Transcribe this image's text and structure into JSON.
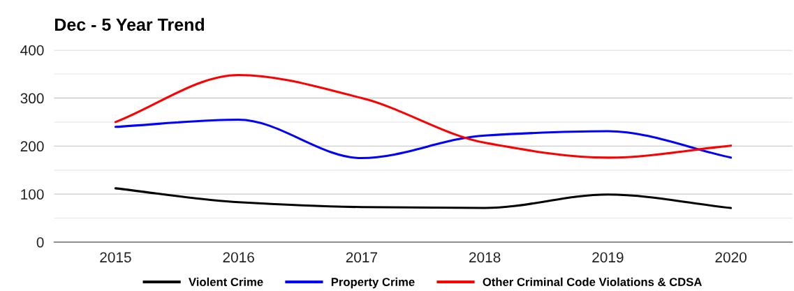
{
  "chart_data": {
    "type": "line",
    "title": "Dec - 5 Year Trend",
    "categories": [
      "2015",
      "2016",
      "2017",
      "2018",
      "2019",
      "2020"
    ],
    "series": [
      {
        "name": "Violent Crime",
        "color": "#000000",
        "values": [
          112,
          83,
          73,
          71,
          99,
          71
        ]
      },
      {
        "name": "Property Crime",
        "color": "#0000ff",
        "values": [
          240,
          255,
          175,
          222,
          231,
          176
        ]
      },
      {
        "name": "Other Criminal Code Violations & CDSA",
        "color": "#ff0000",
        "values": [
          250,
          348,
          300,
          207,
          176,
          201
        ]
      }
    ],
    "ylim": [
      0,
      400
    ],
    "yticks": [
      0,
      100,
      200,
      300,
      400
    ],
    "grid": true,
    "legend": "bottom",
    "marker": "none",
    "line_style": "solid"
  }
}
